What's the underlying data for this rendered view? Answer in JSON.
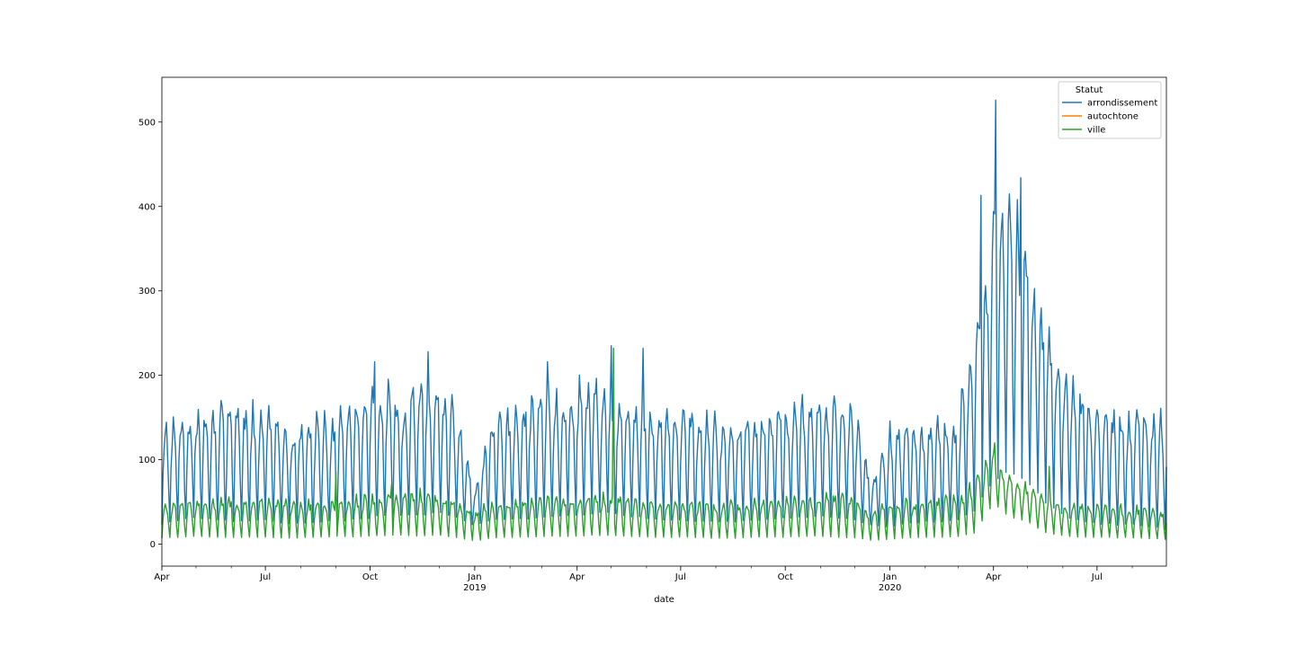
{
  "chart_data": {
    "type": "line",
    "title": "",
    "xlabel": "date",
    "ylabel": "",
    "xlim": [
      "2018-04-01",
      "2020-08-31"
    ],
    "ylim": [
      -26,
      553
    ],
    "grid": false,
    "legend": {
      "title": "Statut",
      "placement": "top-right",
      "entries": [
        "arrondissement",
        "autochtone",
        "ville"
      ]
    },
    "x_ticks": [
      {
        "date": "2018-04-01",
        "label": "Apr",
        "sublabel": ""
      },
      {
        "date": "2018-07-01",
        "label": "Jul",
        "sublabel": ""
      },
      {
        "date": "2018-10-01",
        "label": "Oct",
        "sublabel": ""
      },
      {
        "date": "2019-01-01",
        "label": "Jan",
        "sublabel": "2019"
      },
      {
        "date": "2019-04-01",
        "label": "Apr",
        "sublabel": ""
      },
      {
        "date": "2019-07-01",
        "label": "Jul",
        "sublabel": ""
      },
      {
        "date": "2019-10-01",
        "label": "Oct",
        "sublabel": ""
      },
      {
        "date": "2020-01-01",
        "label": "Jan",
        "sublabel": "2020"
      },
      {
        "date": "2020-04-01",
        "label": "Apr",
        "sublabel": ""
      },
      {
        "date": "2020-07-01",
        "label": "Jul",
        "sublabel": ""
      }
    ],
    "y_ticks": [
      0,
      100,
      200,
      300,
      400,
      500
    ],
    "series": [
      {
        "name": "arrondissement",
        "color": "#1f77b4",
        "x": [
          "2018-04-01",
          "2018-04-15",
          "2018-05-01",
          "2018-05-15",
          "2018-06-01",
          "2018-06-15",
          "2018-07-01",
          "2018-07-15",
          "2018-08-01",
          "2018-08-15",
          "2018-09-01",
          "2018-09-15",
          "2018-10-01",
          "2018-10-15",
          "2018-11-01",
          "2018-11-15",
          "2018-12-01",
          "2018-12-15",
          "2019-01-01",
          "2019-01-15",
          "2019-02-01",
          "2019-02-15",
          "2019-03-01",
          "2019-03-15",
          "2019-04-01",
          "2019-04-15",
          "2019-05-01",
          "2019-05-15",
          "2019-06-01",
          "2019-06-15",
          "2019-07-01",
          "2019-07-15",
          "2019-08-01",
          "2019-08-15",
          "2019-09-01",
          "2019-09-15",
          "2019-10-01",
          "2019-10-15",
          "2019-11-01",
          "2019-11-15",
          "2019-12-01",
          "2019-12-15",
          "2020-01-01",
          "2020-01-15",
          "2020-02-01",
          "2020-02-15",
          "2020-03-01",
          "2020-03-15",
          "2020-04-01",
          "2020-04-15",
          "2020-05-01",
          "2020-05-15",
          "2020-06-01",
          "2020-06-15",
          "2020-07-01",
          "2020-07-15",
          "2020-08-01",
          "2020-08-15",
          "2020-08-31"
        ],
        "low": [
          18,
          22,
          25,
          24,
          20,
          21,
          22,
          19,
          18,
          20,
          21,
          22,
          24,
          26,
          28,
          27,
          29,
          25,
          20,
          22,
          24,
          23,
          25,
          27,
          26,
          28,
          30,
          27,
          24,
          23,
          22,
          21,
          20,
          21,
          22,
          23,
          24,
          25,
          26,
          24,
          22,
          20,
          15,
          18,
          21,
          20,
          22,
          30,
          60,
          70,
          60,
          40,
          25,
          20,
          18,
          16,
          17,
          15,
          10
        ],
        "high": [
          145,
          150,
          160,
          155,
          170,
          165,
          160,
          145,
          140,
          150,
          155,
          165,
          180,
          190,
          175,
          200,
          190,
          170,
          60,
          150,
          160,
          175,
          180,
          185,
          190,
          200,
          180,
          175,
          170,
          165,
          160,
          155,
          150,
          145,
          150,
          155,
          165,
          170,
          175,
          180,
          160,
          75,
          140,
          145,
          140,
          150,
          155,
          260,
          400,
          420,
          350,
          280,
          220,
          190,
          160,
          165,
          160,
          160,
          150
        ],
        "spikes": [
          {
            "x": "2020-04-03",
            "y": 526
          },
          {
            "x": "2020-04-25",
            "y": 434
          },
          {
            "x": "2020-03-21",
            "y": 413
          },
          {
            "x": "2019-05-01",
            "y": 235
          },
          {
            "x": "2019-05-29",
            "y": 232
          },
          {
            "x": "2018-11-21",
            "y": 228
          },
          {
            "x": "2018-10-05",
            "y": 216
          },
          {
            "x": "2019-03-06",
            "y": 216
          }
        ]
      },
      {
        "name": "autochtone",
        "color": "#ff7f0e",
        "x": [],
        "low": [],
        "high": [],
        "spikes": []
      },
      {
        "name": "ville",
        "color": "#2ca02c",
        "x": [
          "2018-04-01",
          "2018-04-15",
          "2018-05-01",
          "2018-05-15",
          "2018-06-01",
          "2018-06-15",
          "2018-07-01",
          "2018-07-15",
          "2018-08-01",
          "2018-08-15",
          "2018-09-01",
          "2018-09-15",
          "2018-10-01",
          "2018-10-15",
          "2018-11-01",
          "2018-11-15",
          "2018-12-01",
          "2018-12-15",
          "2019-01-01",
          "2019-01-15",
          "2019-02-01",
          "2019-02-15",
          "2019-03-01",
          "2019-03-15",
          "2019-04-01",
          "2019-04-15",
          "2019-05-01",
          "2019-05-15",
          "2019-06-01",
          "2019-06-15",
          "2019-07-01",
          "2019-07-15",
          "2019-08-01",
          "2019-08-15",
          "2019-09-01",
          "2019-09-15",
          "2019-10-01",
          "2019-10-15",
          "2019-11-01",
          "2019-11-15",
          "2019-12-01",
          "2019-12-15",
          "2020-01-01",
          "2020-01-15",
          "2020-02-01",
          "2020-02-15",
          "2020-03-01",
          "2020-03-15",
          "2020-04-01",
          "2020-04-15",
          "2020-05-01",
          "2020-05-15",
          "2020-06-01",
          "2020-06-15",
          "2020-07-01",
          "2020-07-15",
          "2020-08-01",
          "2020-08-15",
          "2020-08-31"
        ],
        "low": [
          5,
          6,
          7,
          6,
          5,
          6,
          6,
          5,
          5,
          6,
          7,
          6,
          7,
          8,
          8,
          7,
          8,
          6,
          2,
          5,
          6,
          6,
          7,
          7,
          7,
          8,
          8,
          7,
          6,
          6,
          6,
          6,
          5,
          5,
          6,
          6,
          6,
          7,
          7,
          6,
          5,
          3,
          3,
          5,
          6,
          6,
          7,
          10,
          45,
          30,
          25,
          12,
          8,
          6,
          6,
          6,
          6,
          5,
          4
        ],
        "high": [
          52,
          50,
          55,
          54,
          56,
          52,
          55,
          54,
          53,
          52,
          55,
          56,
          58,
          60,
          62,
          64,
          60,
          56,
          40,
          50,
          54,
          56,
          55,
          58,
          58,
          60,
          58,
          55,
          54,
          52,
          52,
          50,
          50,
          50,
          52,
          52,
          54,
          56,
          58,
          60,
          56,
          38,
          52,
          52,
          54,
          55,
          56,
          75,
          110,
          80,
          70,
          55,
          50,
          48,
          48,
          46,
          45,
          44,
          40
        ],
        "spikes": [
          {
            "x": "2019-05-03",
            "y": 232
          },
          {
            "x": "2018-09-01",
            "y": 86
          },
          {
            "x": "2020-04-02",
            "y": 120
          },
          {
            "x": "2020-05-20",
            "y": 92
          },
          {
            "x": "2018-10-20",
            "y": 72
          }
        ]
      }
    ]
  }
}
